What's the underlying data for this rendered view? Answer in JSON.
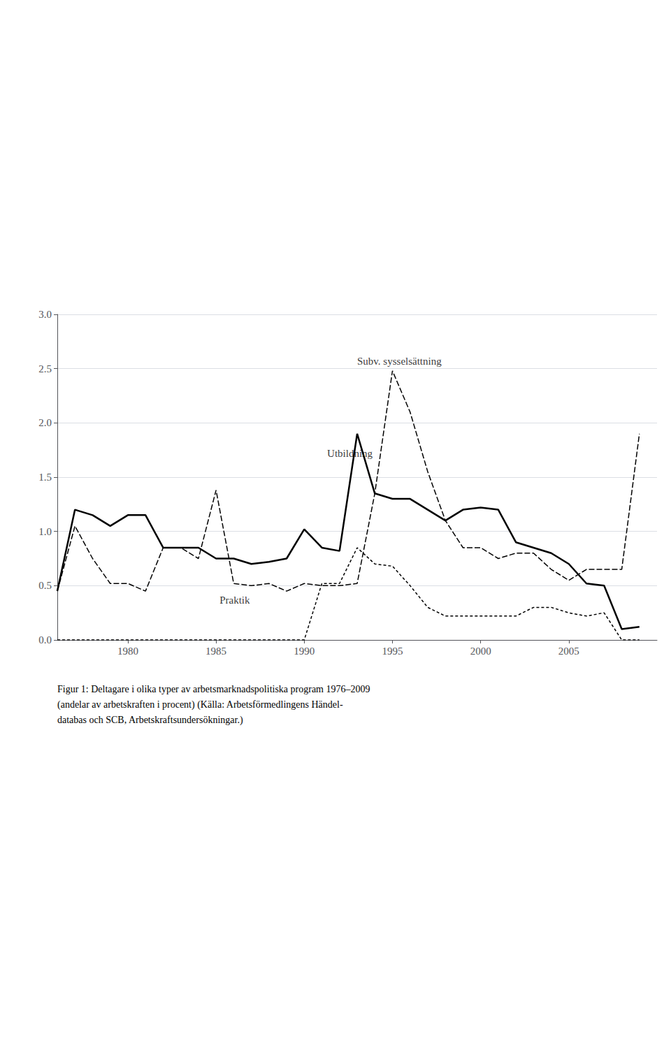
{
  "chart_data": {
    "type": "line",
    "x": [
      1976,
      1977,
      1978,
      1979,
      1980,
      1981,
      1982,
      1983,
      1984,
      1985,
      1986,
      1987,
      1988,
      1989,
      1990,
      1991,
      1992,
      1993,
      1994,
      1995,
      1996,
      1997,
      1998,
      1999,
      2000,
      2001,
      2002,
      2003,
      2004,
      2005,
      2006,
      2007,
      2008,
      2009
    ],
    "series": [
      {
        "color": "#000000",
        "line_style": "longdash",
        "values": [
          0.45,
          1.05,
          0.75,
          0.52,
          0.52,
          0.45,
          0.85,
          0.85,
          0.75,
          1.38,
          0.52,
          0.5,
          0.52,
          0.45,
          0.52,
          0.5,
          0.5,
          0.52,
          1.35,
          2.48,
          2.1,
          1.55,
          1.1,
          0.85,
          0.85,
          0.75,
          0.8,
          0.8,
          0.65,
          0.55,
          0.65,
          0.65,
          0.65,
          1.9
        ]
      },
      {
        "color": "#000000",
        "line_style": "dashed",
        "values": [
          0.0,
          0.0,
          0.0,
          0.0,
          0.0,
          0.0,
          0.0,
          0.0,
          0.0,
          0.0,
          0.0,
          0.0,
          0.0,
          0.0,
          0.0,
          0.52,
          0.52,
          0.85,
          0.7,
          0.68,
          0.5,
          0.3,
          0.22,
          0.22,
          0.22,
          0.22,
          0.22,
          0.3,
          0.3,
          0.25,
          0.22,
          0.25,
          0.0,
          0.0
        ]
      },
      {
        "color": "#000000",
        "line_style": "solid",
        "values": [
          0.45,
          1.2,
          1.15,
          1.05,
          1.15,
          1.15,
          0.85,
          0.85,
          0.85,
          0.75,
          0.75,
          0.7,
          0.72,
          0.75,
          1.02,
          0.85,
          0.82,
          1.9,
          1.35,
          1.3,
          1.3,
          1.2,
          1.1,
          1.2,
          1.22,
          1.2,
          0.9,
          0.85,
          0.8,
          0.7,
          0.52,
          0.5,
          0.1,
          0.12
        ]
      }
    ],
    "annotations": [
      {
        "text": "Utbildning",
        "x": 1991.3,
        "y": 1.67
      },
      {
        "text": "Subv. sysselsättning",
        "x": 1993.0,
        "y": 2.52
      },
      {
        "text": "Praktik",
        "x": 1985.2,
        "y": 0.32
      }
    ],
    "caption": "Figur 1: Deltagare i olika typer av arbetsmarknadspolitiska program 1976–2009\n(andelar av arbetskraften i procent) (Källa: Arbetsförmedlingens Händel-\ndatabas och SCB, Arbetskraftsundersökningar.)",
    "xlim": [
      1976,
      2010
    ],
    "xticks": [
      1980,
      1985,
      1990,
      1995,
      2000,
      2005
    ],
    "ylim": [
      0.0,
      3.0
    ],
    "yticks": [
      {
        "value": 0.0,
        "label": "0.0"
      },
      0.5,
      {
        "value": 1.0,
        "label": "1.0"
      },
      1.5,
      {
        "value": 2.0,
        "label": "2.0"
      },
      2.5,
      {
        "value": 3.0,
        "label": "3.0"
      }
    ],
    "grid": true
  }
}
